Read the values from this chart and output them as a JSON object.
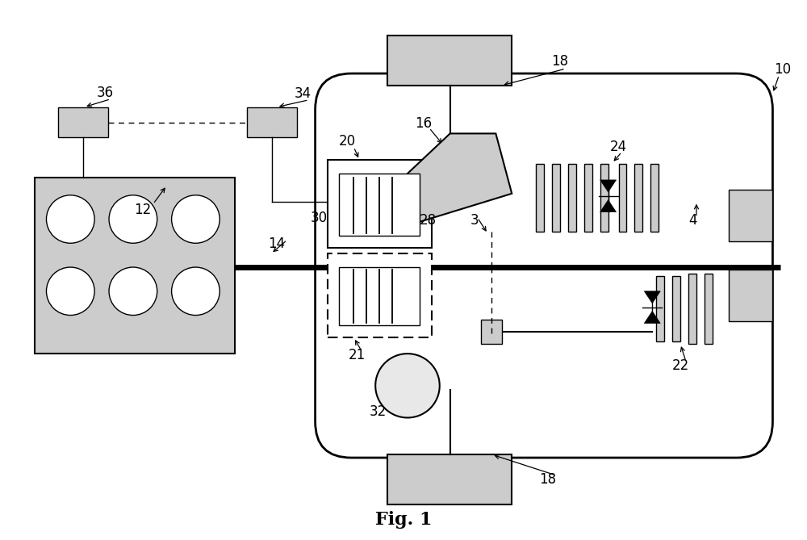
{
  "bg_color": "#ffffff",
  "line_color": "#000000",
  "fill_light": "#cccccc",
  "title": "Fig. 1"
}
